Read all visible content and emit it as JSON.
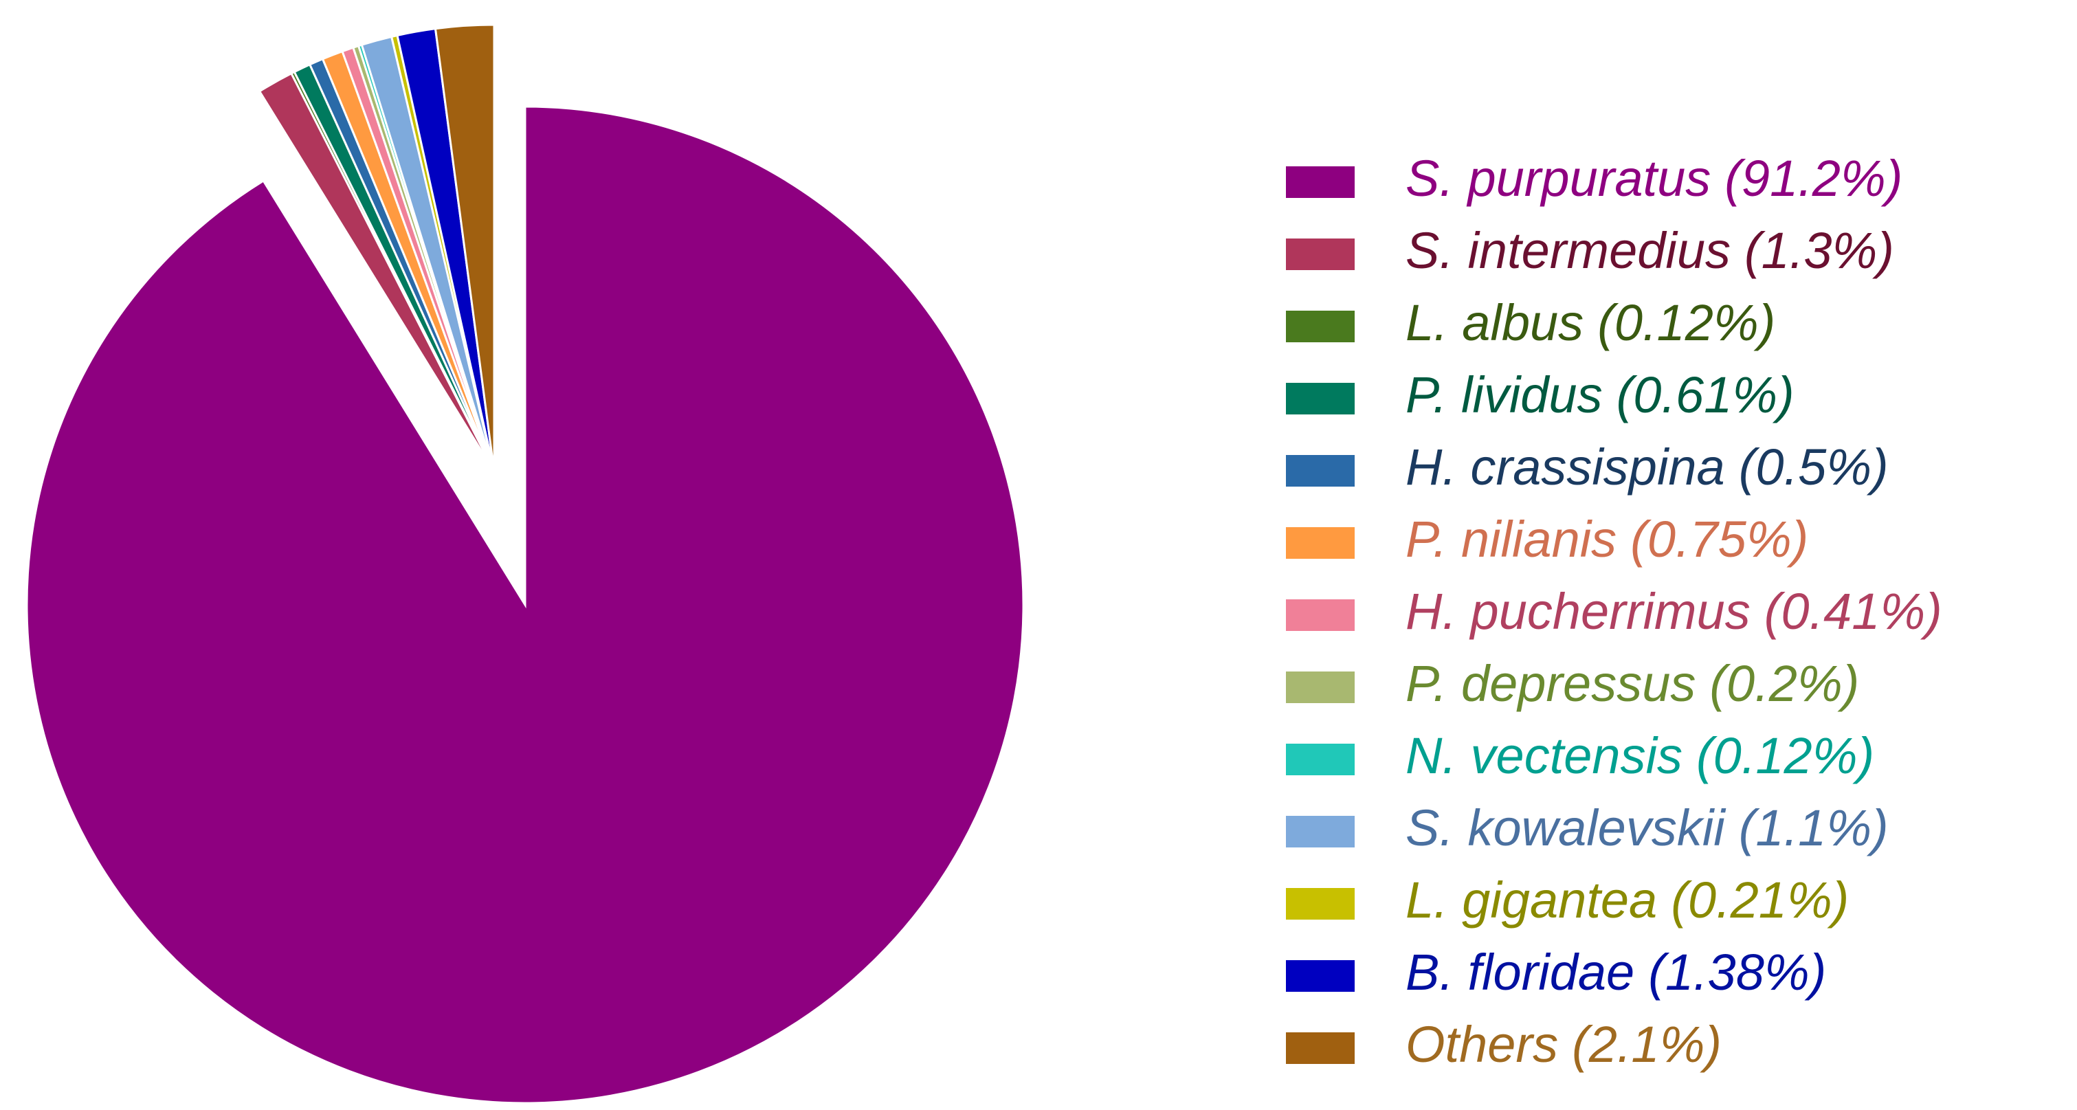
{
  "chart_data": {
    "type": "pie",
    "categories": [
      "S. purpuratus",
      "S. intermedius",
      "L. albus",
      "P. lividus",
      "H. crassispina",
      "P. nilianis",
      "H. pucherrimus",
      "P. depressus",
      "N. vectensis",
      "S. kowalevskii",
      "L. gigantea",
      "B. floridae",
      "Others"
    ],
    "values": [
      91.2,
      1.3,
      0.12,
      0.61,
      0.5,
      0.75,
      0.41,
      0.2,
      0.12,
      1.1,
      0.21,
      1.38,
      2.1
    ],
    "value_labels": [
      "(91.2%)",
      "(1.3%)",
      "(0.12%)",
      "(0.61%)",
      "(0.5%)",
      "(0.75%)",
      "(0.41%)",
      "(0.2%)",
      "(0.12%)",
      "(1.1%)",
      "(0.21%)",
      "(1.38%)",
      "(2.1%)"
    ],
    "colors": [
      "#8e0080",
      "#b0365b",
      "#4a7a1e",
      "#007a5e",
      "#2a6aa8",
      "#ff9a40",
      "#f08098",
      "#a8b870",
      "#20c8b8",
      "#7eaadc",
      "#c8c000",
      "#0000c0",
      "#a06010"
    ],
    "text_colors": [
      "#8e0080",
      "#6a1030",
      "#3a5a10",
      "#005a40",
      "#1a3a60",
      "#d07050",
      "#b04060",
      "#6a8a30",
      "#00a090",
      "#4a70a0",
      "#8a8a00",
      "#0010a0",
      "#a06a20"
    ],
    "legend": "right"
  }
}
